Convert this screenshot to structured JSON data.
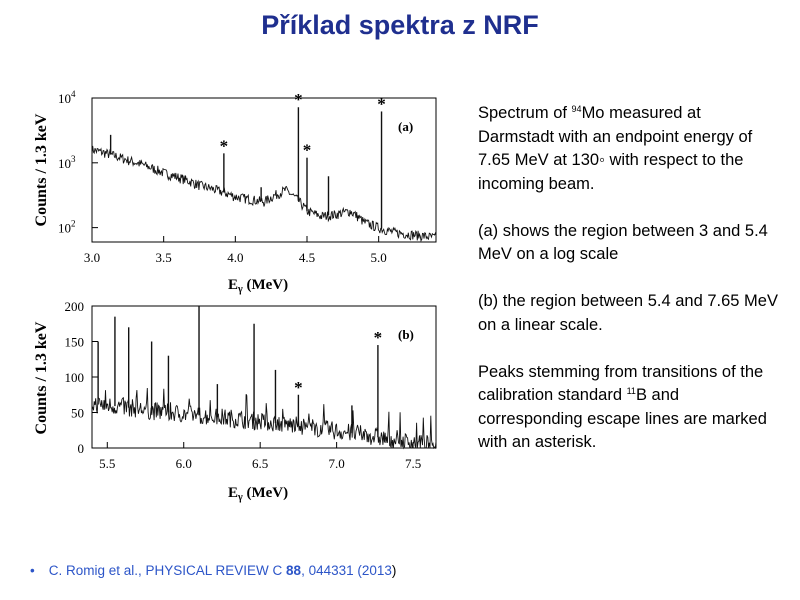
{
  "slide": {
    "title": "Příklad spektra z NRF"
  },
  "description": {
    "p1_pre": "Spectrum of ",
    "p1_sup": "94",
    "p1_post": "Mo measured at Darmstadt with an endpoint energy of 7.65 MeV at 130◦ with respect to the incoming beam.",
    "p2": "(a) shows the region between 3 and 5.4 MeV on a log scale",
    "p3": "(b) the region between 5.4 and 7.65 MeV on a linear scale.",
    "p4_pre": "Peaks stemming from transitions of the calibration standard ",
    "p4_sup": "11",
    "p4_post": "B and corresponding escape lines are marked with an asterisk."
  },
  "reference": {
    "authors": "C. Romig et al., PHYSICAL REVIEW C ",
    "volume": "88",
    "rest": ", 044331 (2013",
    "close": ")"
  },
  "chart_data": [
    {
      "type": "line",
      "panel_label": "(a)",
      "xlabel_main": "E",
      "xlabel_sub": "γ",
      "xlabel_unit": " (MeV)",
      "ylabel": "Counts / 1.3 keV",
      "log_y": true,
      "xlim": [
        3.0,
        5.4
      ],
      "ylim": [
        60,
        10000
      ],
      "x_ticks": [
        "3.0",
        "3.5",
        "4.0",
        "4.5",
        "5.0"
      ],
      "y_tick_values": [
        100,
        1000,
        10000
      ],
      "y_tick_exponents": [
        "2",
        "3",
        "4"
      ],
      "background": {
        "x": [
          3.0,
          3.25,
          3.5,
          3.75,
          4.0,
          4.2,
          4.35,
          4.5,
          4.6,
          4.7,
          4.8,
          4.9,
          5.0,
          5.1,
          5.2,
          5.3,
          5.4
        ],
        "y": [
          1600,
          1100,
          700,
          450,
          300,
          250,
          380,
          180,
          150,
          160,
          180,
          120,
          100,
          85,
          80,
          75,
          70
        ]
      },
      "peaks": [
        {
          "x": 3.13,
          "y": 2700,
          "starred": false
        },
        {
          "x": 3.92,
          "y": 1400,
          "starred": true
        },
        {
          "x": 4.18,
          "y": 420,
          "starred": false
        },
        {
          "x": 4.44,
          "y": 7200,
          "starred": true
        },
        {
          "x": 4.5,
          "y": 1200,
          "starred": true
        },
        {
          "x": 4.65,
          "y": 620,
          "starred": false
        },
        {
          "x": 5.02,
          "y": 6200,
          "starred": true
        }
      ]
    },
    {
      "type": "line",
      "panel_label": "(b)",
      "xlabel_main": "E",
      "xlabel_sub": "γ",
      "xlabel_unit": " (MeV)",
      "ylabel": "Counts / 1.3 keV",
      "log_y": false,
      "xlim": [
        5.4,
        7.65
      ],
      "ylim": [
        0,
        200
      ],
      "x_ticks": [
        "5.5",
        "6.0",
        "6.5",
        "7.0",
        "7.5"
      ],
      "y_ticks": [
        "0",
        "50",
        "100",
        "150",
        "200"
      ],
      "background": {
        "x": [
          5.4,
          5.6,
          5.8,
          6.0,
          6.2,
          6.4,
          6.6,
          6.8,
          7.0,
          7.2,
          7.4,
          7.65
        ],
        "y": [
          62,
          58,
          52,
          48,
          44,
          40,
          35,
          30,
          24,
          18,
          10,
          4
        ]
      },
      "peaks": [
        {
          "x": 5.44,
          "y": 150,
          "starred": false
        },
        {
          "x": 5.55,
          "y": 185,
          "starred": false
        },
        {
          "x": 5.64,
          "y": 170,
          "starred": false
        },
        {
          "x": 5.79,
          "y": 150,
          "starred": false
        },
        {
          "x": 5.9,
          "y": 130,
          "starred": false
        },
        {
          "x": 6.1,
          "y": 200,
          "starred": false
        },
        {
          "x": 6.22,
          "y": 90,
          "starred": false
        },
        {
          "x": 6.46,
          "y": 175,
          "starred": false
        },
        {
          "x": 6.6,
          "y": 110,
          "starred": false
        },
        {
          "x": 6.75,
          "y": 75,
          "starred": true
        },
        {
          "x": 7.1,
          "y": 60,
          "starred": false
        },
        {
          "x": 7.27,
          "y": 145,
          "starred": true
        }
      ]
    }
  ]
}
